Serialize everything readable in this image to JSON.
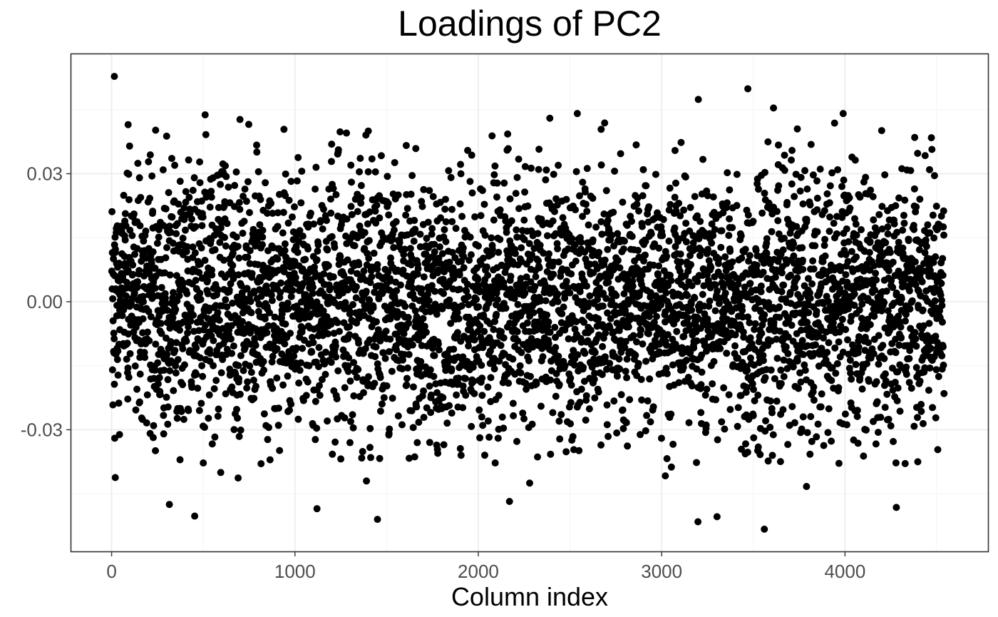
{
  "chart_data": {
    "type": "scatter",
    "title": "Loadings of PC2",
    "xlabel": "Column index",
    "ylabel": "",
    "xlim": [
      -220,
      4780
    ],
    "ylim": [
      -0.0585,
      0.058
    ],
    "x_ticks": [
      0,
      1000,
      2000,
      3000,
      4000
    ],
    "x_tick_labels": [
      "0",
      "1000",
      "2000",
      "3000",
      "4000"
    ],
    "y_ticks": [
      -0.03,
      0.0,
      0.03
    ],
    "y_tick_labels": [
      "-0.03",
      "0.00",
      "0.03"
    ],
    "grid": true,
    "legend": "none",
    "point_color": "#000000",
    "n_points": 4540,
    "x_range": [
      1,
      4540
    ],
    "loading_mean": 0.0,
    "loading_sd": 0.0148,
    "extreme_points": [
      {
        "x": 15,
        "y": 0.0528
      },
      {
        "x": 20,
        "y": -0.0412
      },
      {
        "x": 90,
        "y": 0.0415
      },
      {
        "x": 240,
        "y": 0.0402
      },
      {
        "x": 300,
        "y": 0.0388
      },
      {
        "x": 315,
        "y": -0.0475
      },
      {
        "x": 510,
        "y": 0.0438
      },
      {
        "x": 700,
        "y": 0.0427
      },
      {
        "x": 690,
        "y": -0.0413
      },
      {
        "x": 940,
        "y": 0.0404
      },
      {
        "x": 1120,
        "y": -0.0485
      },
      {
        "x": 1400,
        "y": 0.04
      },
      {
        "x": 1390,
        "y": -0.042
      },
      {
        "x": 1450,
        "y": -0.051
      },
      {
        "x": 2160,
        "y": 0.0393
      },
      {
        "x": 2170,
        "y": -0.0468
      },
      {
        "x": 2280,
        "y": -0.0425
      },
      {
        "x": 2390,
        "y": 0.043
      },
      {
        "x": 2540,
        "y": 0.0441
      },
      {
        "x": 2670,
        "y": 0.0404
      },
      {
        "x": 3020,
        "y": -0.0408
      },
      {
        "x": 3200,
        "y": 0.0474
      },
      {
        "x": 3470,
        "y": 0.0499
      },
      {
        "x": 3560,
        "y": -0.0533
      },
      {
        "x": 3610,
        "y": 0.0454
      },
      {
        "x": 3740,
        "y": 0.0405
      },
      {
        "x": 3790,
        "y": -0.0433
      },
      {
        "x": 3990,
        "y": 0.0441
      },
      {
        "x": 4200,
        "y": 0.0401
      },
      {
        "x": 4280,
        "y": -0.0482
      },
      {
        "x": 4380,
        "y": 0.0385
      }
    ]
  }
}
